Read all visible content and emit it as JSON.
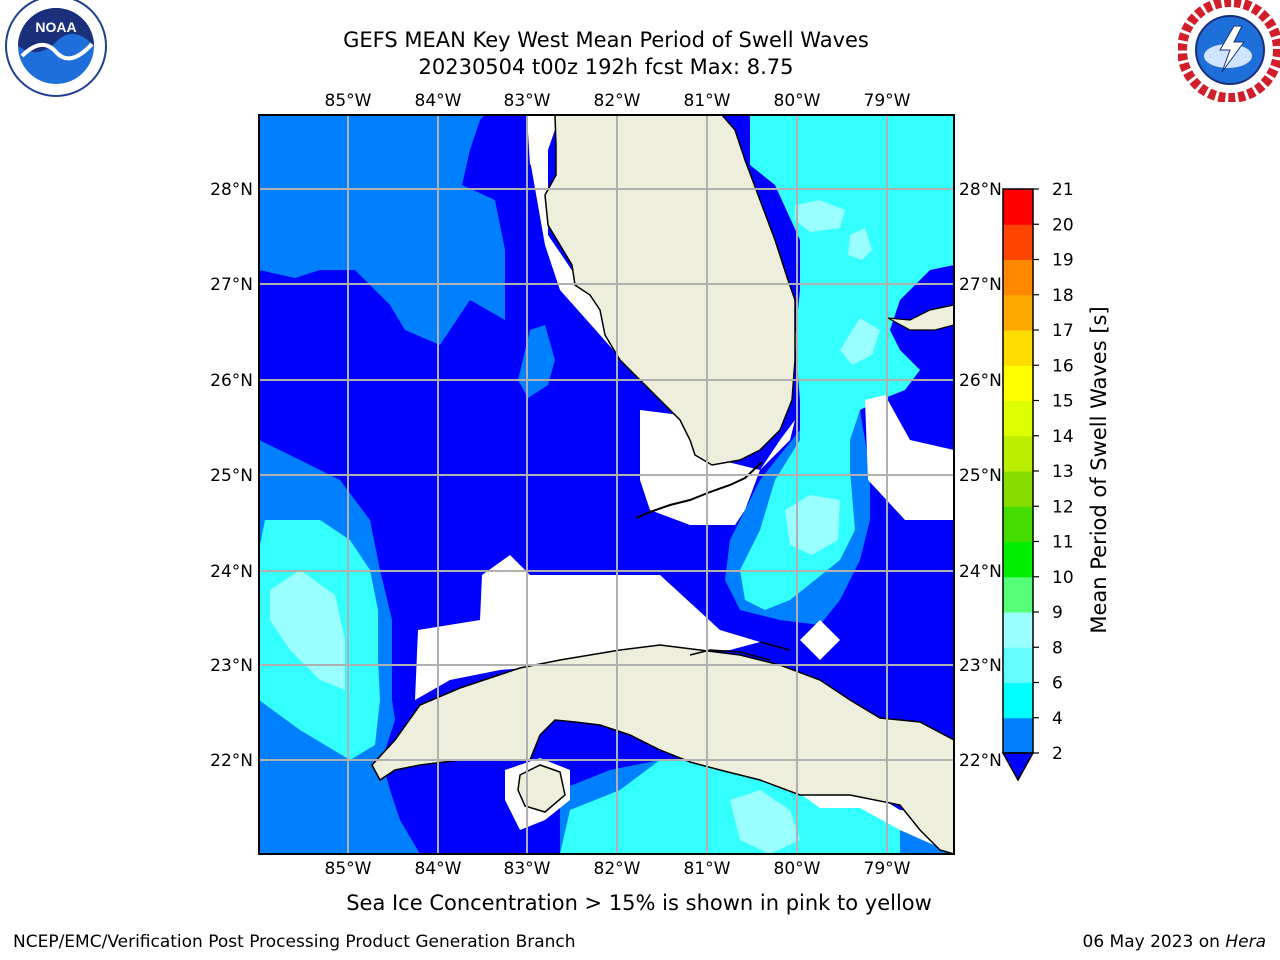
{
  "header": {
    "title_line1": "GEFS MEAN Key West Mean Period of Swell Waves",
    "title_line2": "20230504 t00z 192h fcst   Max: 8.75"
  },
  "logos": {
    "left": "noara-logo",
    "right": "nws-logo"
  },
  "map": {
    "lon_labels": [
      "85°W",
      "84°W",
      "83°W",
      "82°W",
      "81°W",
      "80°W",
      "79°W"
    ],
    "lat_labels": [
      "28°N",
      "27°N",
      "26°N",
      "25°N",
      "24°N",
      "23°N",
      "22°N"
    ],
    "colors": {
      "ocean_2_4": "#0000ff",
      "ocean_4_6": "#0080ff",
      "ocean_6_8": "#33ffff",
      "ocean_8_9": "#99ffff",
      "land": "#eeeedd",
      "grid": "#b0b0b0"
    }
  },
  "colorbar": {
    "label": "Mean Period of Swell Waves [s]",
    "ticks": [
      "2",
      "4",
      "6",
      "8",
      "9",
      "10",
      "11",
      "12",
      "13",
      "14",
      "15",
      "16",
      "17",
      "18",
      "19",
      "20",
      "21"
    ],
    "colors": [
      "#0000ff",
      "#0080ff",
      "#00ffff",
      "#66ffff",
      "#99ffff",
      "#55ff77",
      "#00ee00",
      "#44dd00",
      "#88dd00",
      "#bbee00",
      "#ddff00",
      "#ffff00",
      "#ffdd00",
      "#ffaa00",
      "#ff8800",
      "#ff4400",
      "#ff0000"
    ]
  },
  "footer": {
    "note": "Sea Ice Concentration > 15% is shown in pink to yellow",
    "left": "NCEP/EMC/Verification Post Processing Product Generation Branch",
    "date": "06 May 2023 on",
    "host": "Hera"
  }
}
